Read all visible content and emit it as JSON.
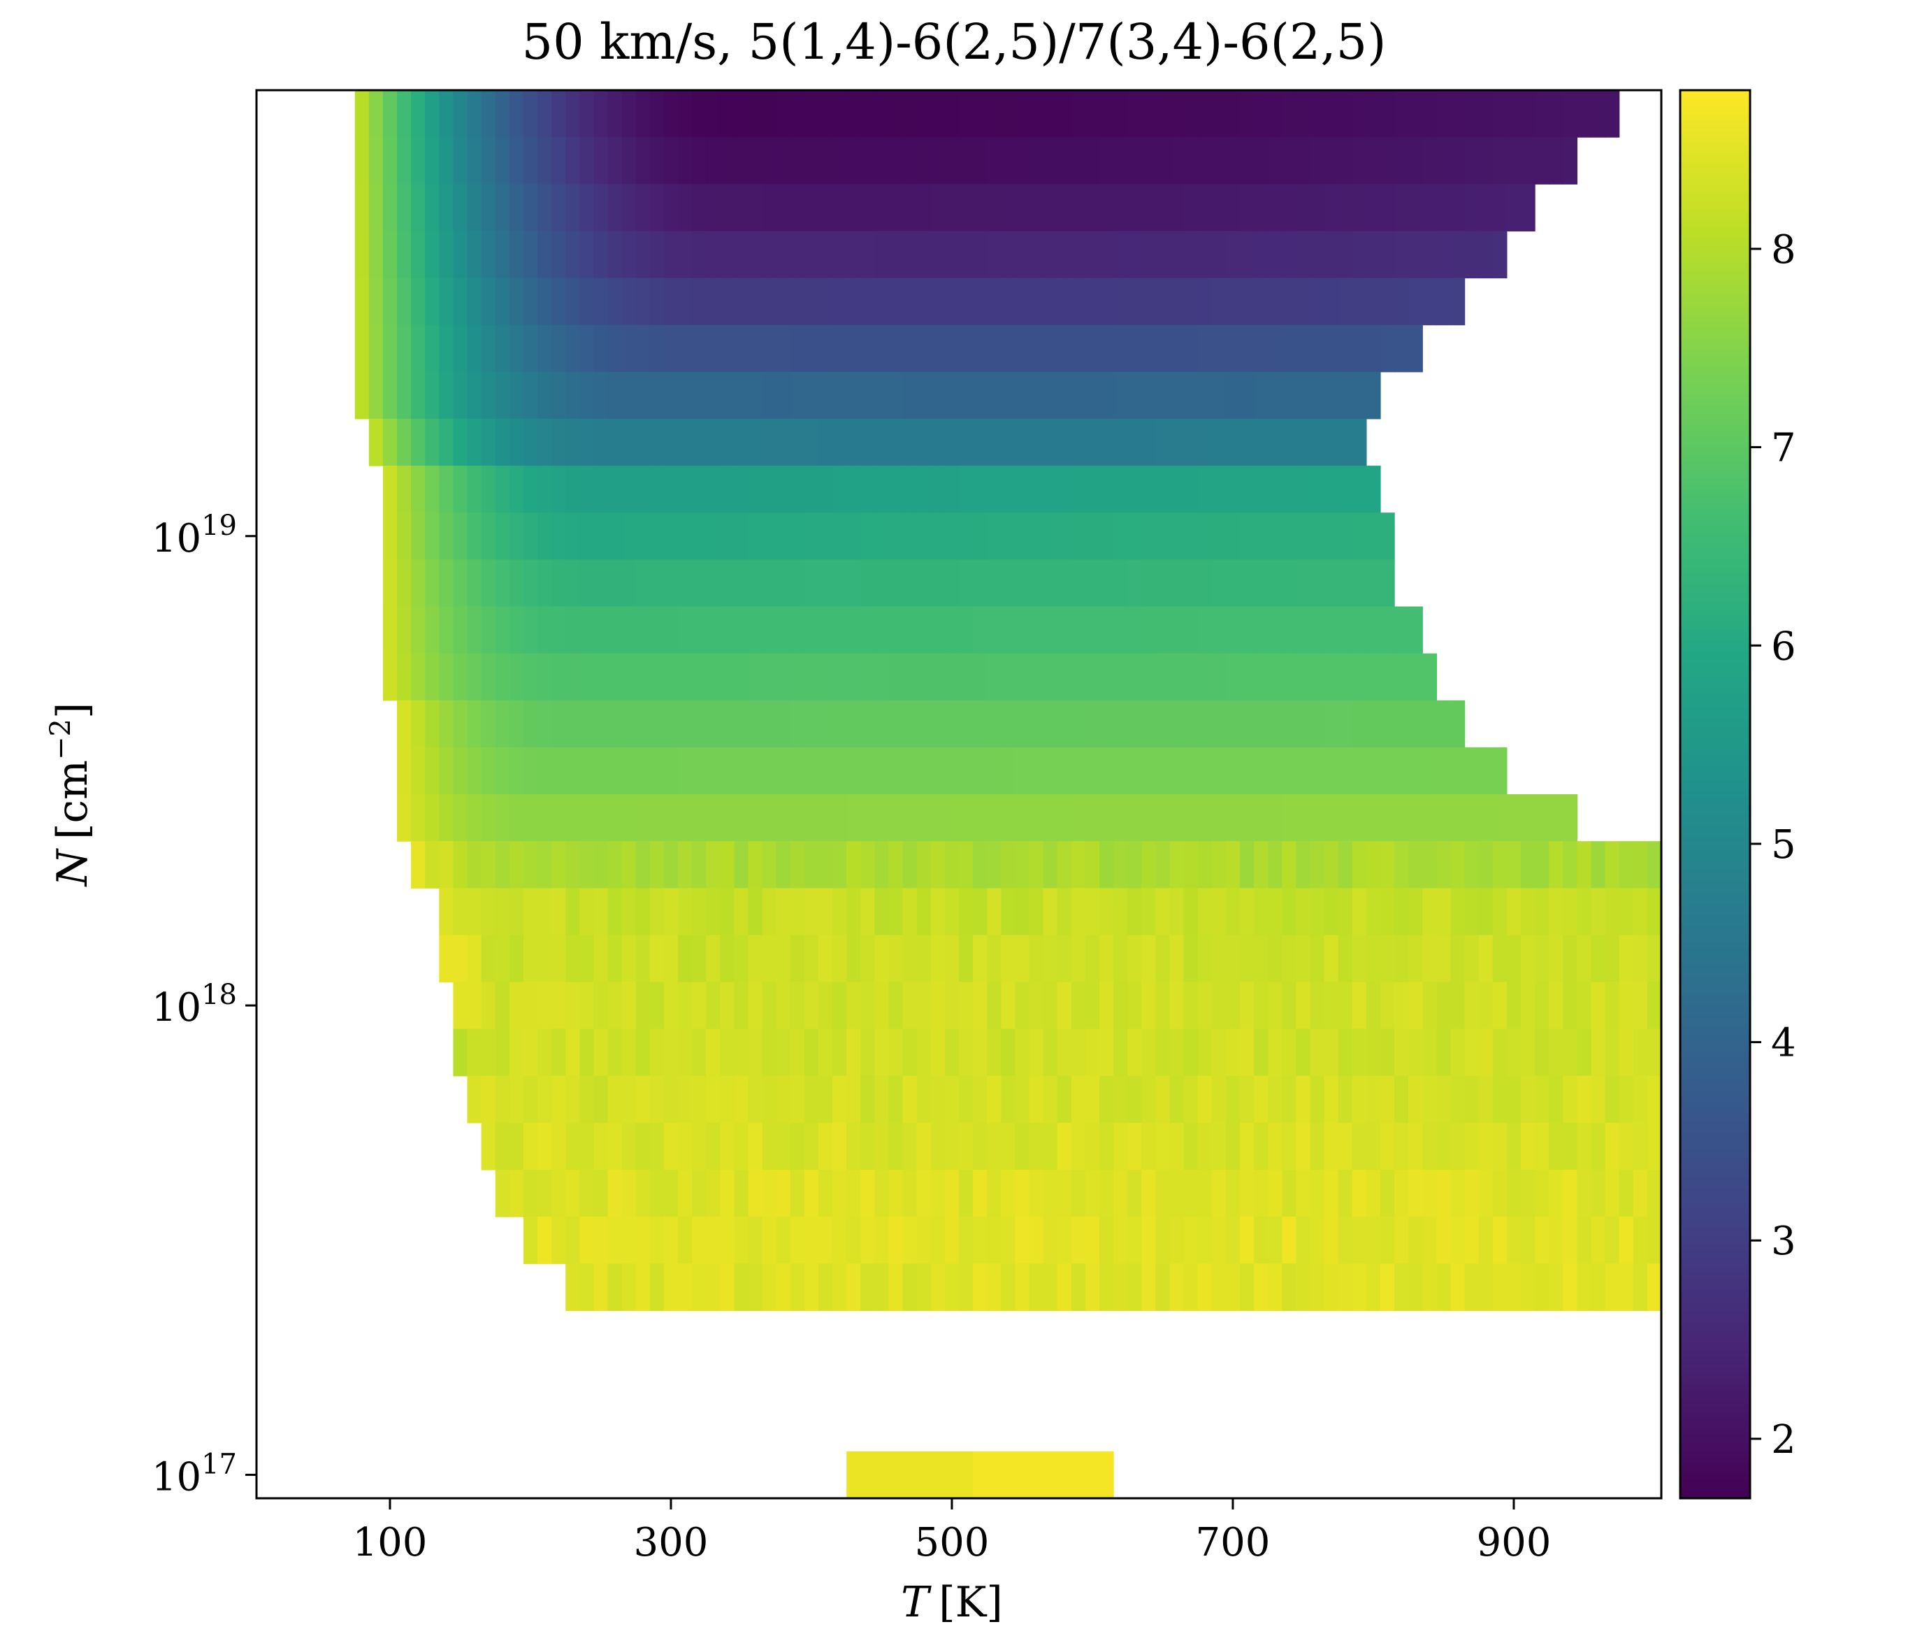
{
  "chart_data": {
    "type": "heatmap",
    "title": "50 km/s, 5(1,4)-6(2,5)/7(3,4)-6(2,5)",
    "xlabel_var": "T",
    "xlabel_unit": "[K]",
    "ylabel_var": "N",
    "ylabel_unit": "[cm",
    "ylabel_exp": "−2",
    "ylabel_close": "]",
    "x_scale": "linear",
    "y_scale": "log",
    "xlim": [
      5,
      1005
    ],
    "ylim_log10": [
      16.95,
      19.95
    ],
    "x_ticks": [
      {
        "value": 100,
        "label": "100"
      },
      {
        "value": 300,
        "label": "300"
      },
      {
        "value": 500,
        "label": "500"
      },
      {
        "value": 700,
        "label": "700"
      },
      {
        "value": 900,
        "label": "900"
      }
    ],
    "y_ticks": [
      {
        "log10": 17,
        "base": "10",
        "exp": "17"
      },
      {
        "log10": 18,
        "base": "10",
        "exp": "18"
      },
      {
        "log10": 19,
        "base": "10",
        "exp": "19"
      }
    ],
    "colorbar": {
      "colormap": "viridis",
      "range": [
        1.7,
        8.8
      ],
      "ticks": [
        {
          "value": 2,
          "label": "2"
        },
        {
          "value": 3,
          "label": "3"
        },
        {
          "value": 4,
          "label": "4"
        },
        {
          "value": 5,
          "label": "5"
        },
        {
          "value": 6,
          "label": "6"
        },
        {
          "value": 7,
          "label": "7"
        },
        {
          "value": 8,
          "label": "8"
        }
      ]
    },
    "rows_columns": "log10 N at row center, T range of valid data [Tmin, Tmax], left-edge value, left-ramp width in K, plateau value, right-end value",
    "rows": [
      {
        "logN": 19.9,
        "tmin": 75,
        "tmax": 975,
        "left": 8.3,
        "ramp": 270,
        "mid": 1.75,
        "right": 2.1
      },
      {
        "logN": 19.8,
        "tmin": 75,
        "tmax": 945,
        "left": 8.3,
        "ramp": 270,
        "mid": 1.9,
        "right": 2.2
      },
      {
        "logN": 19.7,
        "tmin": 75,
        "tmax": 915,
        "left": 8.3,
        "ramp": 270,
        "mid": 2.15,
        "right": 2.35
      },
      {
        "logN": 19.6,
        "tmin": 75,
        "tmax": 895,
        "left": 8.3,
        "ramp": 260,
        "mid": 2.5,
        "right": 2.65
      },
      {
        "logN": 19.5,
        "tmin": 75,
        "tmax": 865,
        "left": 8.3,
        "ramp": 250,
        "mid": 2.95,
        "right": 3.05
      },
      {
        "logN": 19.4,
        "tmin": 75,
        "tmax": 835,
        "left": 8.3,
        "ramp": 230,
        "mid": 3.5,
        "right": 3.55
      },
      {
        "logN": 19.3,
        "tmin": 75,
        "tmax": 805,
        "left": 8.3,
        "ramp": 200,
        "mid": 4.1,
        "right": 4.1
      },
      {
        "logN": 19.2,
        "tmin": 85,
        "tmax": 795,
        "left": 8.3,
        "ramp": 170,
        "mid": 4.7,
        "right": 4.7
      },
      {
        "logN": 19.1,
        "tmin": 95,
        "tmax": 805,
        "left": 8.4,
        "ramp": 160,
        "mid": 5.7,
        "right": 5.9
      },
      {
        "logN": 19.0,
        "tmin": 95,
        "tmax": 815,
        "left": 8.4,
        "ramp": 150,
        "mid": 6.0,
        "right": 6.2
      },
      {
        "logN": 18.9,
        "tmin": 95,
        "tmax": 815,
        "left": 8.4,
        "ramp": 150,
        "mid": 6.3,
        "right": 6.4
      },
      {
        "logN": 18.8,
        "tmin": 95,
        "tmax": 835,
        "left": 8.4,
        "ramp": 140,
        "mid": 6.55,
        "right": 6.65
      },
      {
        "logN": 18.7,
        "tmin": 95,
        "tmax": 845,
        "left": 8.4,
        "ramp": 130,
        "mid": 6.8,
        "right": 6.85
      },
      {
        "logN": 18.6,
        "tmin": 105,
        "tmax": 865,
        "left": 8.5,
        "ramp": 120,
        "mid": 7.05,
        "right": 7.1
      },
      {
        "logN": 18.5,
        "tmin": 105,
        "tmax": 895,
        "left": 8.5,
        "ramp": 110,
        "mid": 7.3,
        "right": 7.35
      },
      {
        "logN": 18.4,
        "tmin": 105,
        "tmax": 945,
        "left": 8.5,
        "ramp": 100,
        "mid": 7.6,
        "right": 7.65
      },
      {
        "logN": 18.3,
        "tmin": 115,
        "tmax": 1005,
        "left": 8.5,
        "ramp": 90,
        "mid": 7.9,
        "right": 7.9
      },
      {
        "logN": 18.2,
        "tmin": 135,
        "tmax": 1005,
        "left": 8.5,
        "ramp": 70,
        "mid": 8.2,
        "right": 8.2
      },
      {
        "logN": 18.1,
        "tmin": 135,
        "tmax": 1005,
        "left": 8.6,
        "ramp": 60,
        "mid": 8.25,
        "right": 8.25
      },
      {
        "logN": 18.0,
        "tmin": 145,
        "tmax": 1005,
        "left": 8.6,
        "ramp": 50,
        "mid": 8.3,
        "right": 8.3
      },
      {
        "logN": 17.9,
        "tmin": 145,
        "tmax": 1005,
        "left": 7.9,
        "ramp": 50,
        "mid": 8.3,
        "right": 8.3
      },
      {
        "logN": 17.8,
        "tmin": 155,
        "tmax": 1005,
        "left": 8.4,
        "ramp": 40,
        "mid": 8.35,
        "right": 8.35
      },
      {
        "logN": 17.7,
        "tmin": 165,
        "tmax": 1005,
        "left": 8.4,
        "ramp": 40,
        "mid": 8.4,
        "right": 8.4
      },
      {
        "logN": 17.6,
        "tmin": 175,
        "tmax": 1005,
        "left": 8.4,
        "ramp": 40,
        "mid": 8.45,
        "right": 8.45
      },
      {
        "logN": 17.5,
        "tmin": 195,
        "tmax": 1005,
        "left": 8.5,
        "ramp": 40,
        "mid": 8.5,
        "right": 8.5
      },
      {
        "logN": 17.4,
        "tmin": 225,
        "tmax": 1005,
        "left": 8.5,
        "ramp": 40,
        "mid": 8.45,
        "right": 8.5
      }
    ],
    "bottom_row": {
      "logN": 17.0,
      "segments": [
        {
          "tmin": 425,
          "tmax": 515,
          "value": 8.6
        },
        {
          "tmin": 515,
          "tmax": 615,
          "value": 8.7
        }
      ]
    }
  }
}
